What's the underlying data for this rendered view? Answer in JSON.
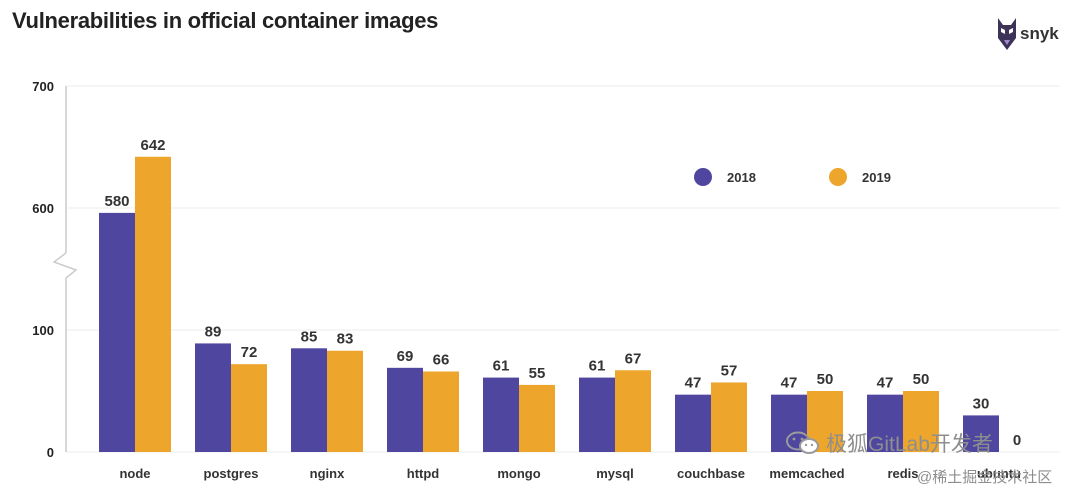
{
  "title": "Vulnerabilities in official container images",
  "logo": {
    "text": "snyk",
    "icon": "snyk-dog-logo"
  },
  "colors": {
    "s2018": "#4f46a0",
    "s2019": "#eea52c",
    "axis": "#cccccc",
    "grid": "#eeeeee",
    "label": "#333333",
    "tick": "#222222"
  },
  "watermark": {
    "line1": "极狐GitLab开发者",
    "line2": "@稀土掘金技术社区",
    "icon": "wechat-icon"
  },
  "chart_data": {
    "type": "bar",
    "title": "Vulnerabilities in official container images",
    "xlabel": "",
    "ylabel": "",
    "categories": [
      "node",
      "postgres",
      "nginx",
      "httpd",
      "mongo",
      "mysql",
      "couchbase",
      "memcached",
      "redis",
      "ubuntu"
    ],
    "series": [
      {
        "name": "2018",
        "values": [
          580,
          89,
          85,
          69,
          61,
          61,
          47,
          47,
          47,
          30
        ]
      },
      {
        "name": "2019",
        "values": [
          642,
          72,
          83,
          66,
          55,
          67,
          57,
          50,
          50,
          0
        ]
      }
    ],
    "yticks": [
      "0",
      "100",
      "600",
      "700"
    ],
    "axis_break": "between 100 and 600",
    "ylim": [
      0,
      700
    ],
    "grid": true,
    "legend_position": "top-right"
  }
}
